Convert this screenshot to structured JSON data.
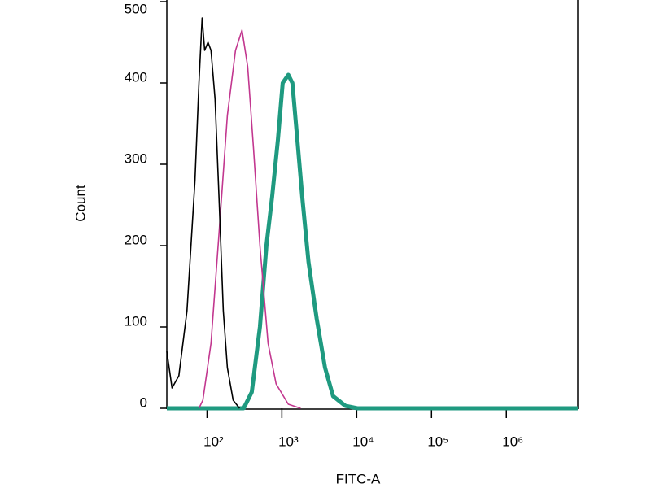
{
  "chart_data": {
    "type": "line",
    "xlabel": "FITC-A",
    "ylabel": "Count",
    "xscale": "log",
    "grid": false,
    "xlim": [
      29,
      9000000
    ],
    "ylim": [
      0,
      500
    ],
    "xticks": [
      {
        "value": 100,
        "label": "10²"
      },
      {
        "value": 1000,
        "label": "10³"
      },
      {
        "value": 10000,
        "label": "10⁴"
      },
      {
        "value": 100000,
        "label": "10⁵"
      },
      {
        "value": 1000000,
        "label": "10⁶"
      }
    ],
    "yticks": [
      0,
      100,
      200,
      300,
      400,
      500
    ],
    "series": [
      {
        "color": "#000000",
        "width": 1.6,
        "x": [
          29,
          34,
          42,
          54,
          69,
          78,
          86,
          93,
          103,
          113,
          128,
          146,
          165,
          187,
          223,
          272
        ],
        "values": [
          70,
          25,
          40,
          120,
          280,
          400,
          480,
          440,
          450,
          440,
          380,
          250,
          120,
          50,
          10,
          0
        ]
      },
      {
        "color": "#c2378f",
        "width": 1.6,
        "x": [
          78,
          88,
          113,
          146,
          187,
          240,
          293,
          349,
          417,
          509,
          654,
          837,
          1220,
          1780
        ],
        "values": [
          0,
          10,
          80,
          220,
          360,
          440,
          465,
          420,
          320,
          200,
          80,
          30,
          5,
          0
        ]
      },
      {
        "color": "#1f9a80",
        "width": 5,
        "x": [
          29,
          309,
          396,
          509,
          622,
          741,
          884,
          1025,
          1220,
          1380,
          1610,
          1870,
          2270,
          2920,
          3770,
          4830,
          7060,
          10200,
          9000000
        ],
        "values": [
          0,
          0,
          20,
          100,
          200,
          260,
          330,
          400,
          410,
          400,
          330,
          260,
          180,
          110,
          50,
          15,
          3,
          0,
          0
        ]
      }
    ]
  }
}
